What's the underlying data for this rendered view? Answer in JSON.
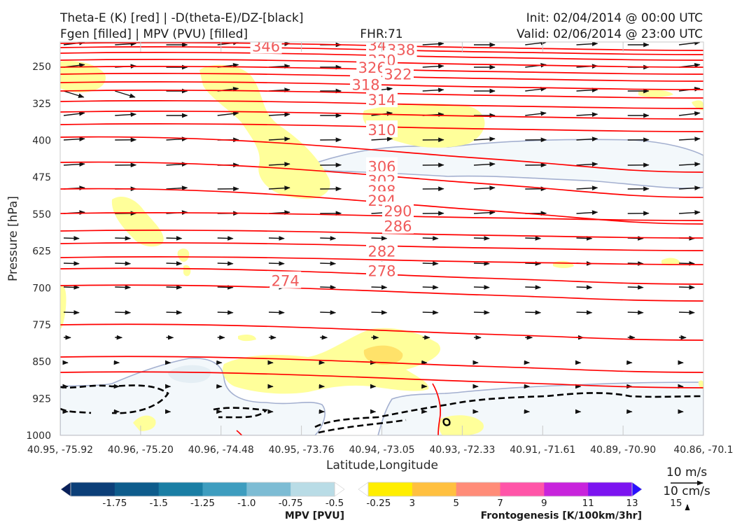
{
  "header": {
    "title_left_1": "Theta-E (K) [red] | -D(theta-E)/DZ-[black]",
    "title_left_2": "Fgen [filled] | MPV (PVU) [filled]",
    "fhr": "FHR:71",
    "init": "Init: 02/04/2014 @ 00:00 UTC",
    "valid": "Valid: 02/06/2014 @ 23:00 UTC"
  },
  "vector_key": {
    "horizontal": "10 m/s",
    "vertical": "10 cm/s"
  },
  "colors": {
    "theta_e": "#ff0000",
    "theta_e_label": "#f05a5a",
    "wind_arrow": "#111111",
    "mpv_outline": "#a4b0d0"
  },
  "chart_data": {
    "type": "cross-section",
    "xlabel": "Latitude,Longitude",
    "ylabel": "Pressure [hPa]",
    "ylim": [
      1000,
      200
    ],
    "y_ticks": [
      250,
      325,
      400,
      475,
      550,
      625,
      700,
      775,
      850,
      925,
      1000
    ],
    "x_ticks": [
      "40.95, -75.92",
      "40.96, -75.20",
      "40.96, -74.48",
      "40.95, -73.76",
      "40.94, -73.05",
      "40.93, -72.33",
      "40.91, -71.61",
      "40.89, -70.90",
      "40.86, -70.1"
    ],
    "theta_e_labels": [
      {
        "text": "346",
        "x": 0.32,
        "p": 208
      },
      {
        "text": "342",
        "x": 0.5,
        "p": 206
      },
      {
        "text": "338",
        "x": 0.53,
        "p": 215
      },
      {
        "text": "330",
        "x": 0.5,
        "p": 236
      },
      {
        "text": "326",
        "x": 0.485,
        "p": 251
      },
      {
        "text": "322",
        "x": 0.525,
        "p": 265
      },
      {
        "text": "318",
        "x": 0.475,
        "p": 286
      },
      {
        "text": "314",
        "x": 0.5,
        "p": 317
      },
      {
        "text": "310",
        "x": 0.5,
        "p": 378
      },
      {
        "text": "306",
        "x": 0.5,
        "p": 453
      },
      {
        "text": "302",
        "x": 0.5,
        "p": 481
      },
      {
        "text": "298",
        "x": 0.5,
        "p": 502
      },
      {
        "text": "294",
        "x": 0.5,
        "p": 522
      },
      {
        "text": "290",
        "x": 0.525,
        "p": 543
      },
      {
        "text": "286",
        "x": 0.525,
        "p": 574
      },
      {
        "text": "282",
        "x": 0.5,
        "p": 625
      },
      {
        "text": "278",
        "x": 0.5,
        "p": 665
      },
      {
        "text": "274",
        "x": 0.35,
        "p": 685
      }
    ],
    "mpv_colorbar": {
      "label": "MPV [PVU]",
      "ticks": [
        "-1.75",
        "-1.5",
        "-1.25",
        "-1.0",
        "-0.75",
        "-0.5",
        "-0.25"
      ],
      "colors": [
        "#08205a",
        "#0c3f78",
        "#0e5c8c",
        "#1a7ea4",
        "#3e9dbf",
        "#7dbcd4",
        "#b9dce6",
        "#ffffff"
      ]
    },
    "fgen_colorbar": {
      "label": "Frontogenesis [K/100km/3hr]",
      "ticks": [
        "3",
        "5",
        "7",
        "9",
        "11",
        "13",
        "15"
      ],
      "colors": [
        "#ffffff",
        "#ffee00",
        "#ffc040",
        "#ff8c78",
        "#ff55a8",
        "#c824dc",
        "#7c14f0",
        "#2a10ff"
      ]
    }
  }
}
